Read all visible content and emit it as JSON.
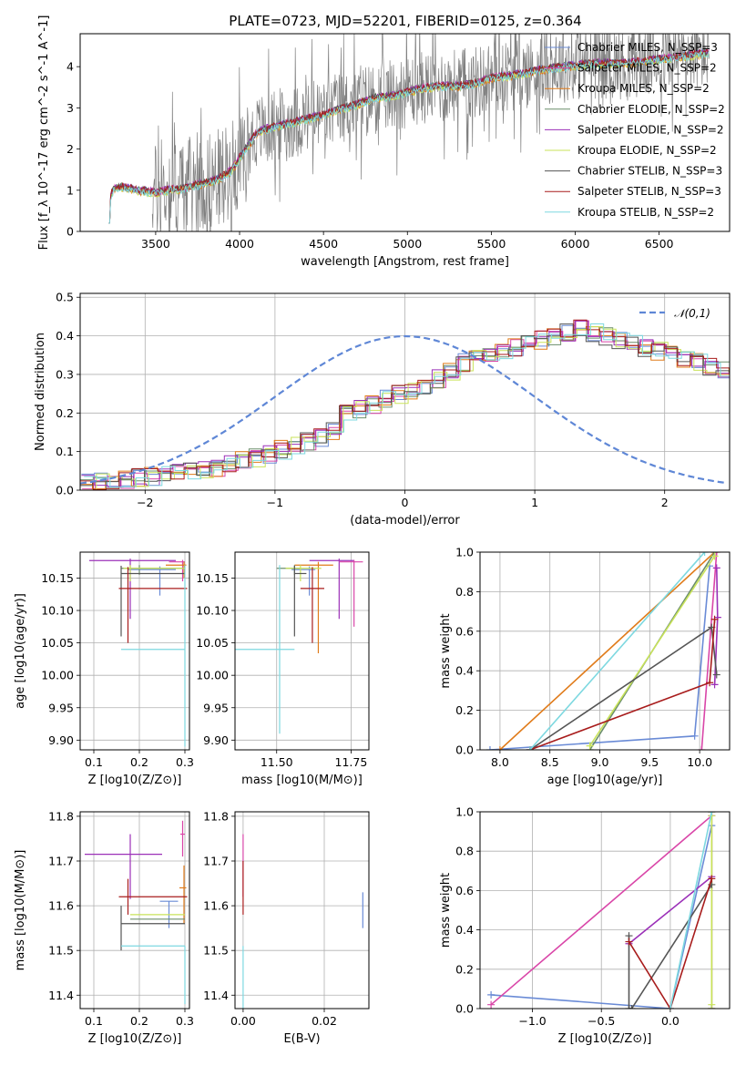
{
  "title": "PLATE=0723, MJD=52201, FIBERID=0125, z=0.364",
  "colors": {
    "Chabrier MILES": "#6a8bd6",
    "Salpeter MILES": "#d946a8",
    "Kroupa MILES": "#e07b1a",
    "Chabrier ELODIE": "#6b8e6b",
    "Salpeter ELODIE": "#9b30b8",
    "Kroupa ELODIE": "#c9e35a",
    "Chabrier STELIB": "#555555",
    "Salpeter STELIB": "#a81c1c",
    "Kroupa STELIB": "#7dd8e0",
    "data": "#808080",
    "normal": "#5f87d6"
  },
  "chart_data": [
    {
      "id": "spectrum",
      "type": "line",
      "xlabel": "wavelength [Angstrom, rest frame]",
      "ylabel": "Flux [f_λ 10^-17 erg cm^-2 s^-1 A^-1]",
      "xlim": [
        3050,
        6920
      ],
      "ylim": [
        0,
        4.8
      ],
      "xticks": [
        3500,
        4000,
        4500,
        5000,
        5500,
        6000,
        6500
      ],
      "yticks": [
        0,
        1,
        2,
        3,
        4
      ],
      "legend_position": "top-right",
      "legend": [
        "Chabrier MILES, N_SSP=3",
        "Salpeter MILES, N_SSP=2",
        "Kroupa MILES, N_SSP=2",
        "Chabrier ELODIE, N_SSP=2",
        "Salpeter ELODIE, N_SSP=2",
        "Kroupa ELODIE, N_SSP=2",
        "Chabrier STELIB, N_SSP=3",
        "Salpeter STELIB, N_SSP=3",
        "Kroupa STELIB, N_SSP=2"
      ],
      "model_continuum": {
        "x": [
          3220,
          3250,
          3300,
          3350,
          3400,
          3450,
          3500,
          3550,
          3600,
          3650,
          3700,
          3750,
          3800,
          3850,
          3900,
          3950,
          4000,
          4050,
          4100,
          4150,
          4200,
          4300,
          4400,
          4500,
          4600,
          4700,
          4800,
          4900,
          5000,
          5100,
          5200,
          5300,
          5400,
          5500,
          5600,
          5700,
          5800,
          5900,
          6000,
          6100,
          6200,
          6300,
          6400,
          6500,
          6600,
          6700,
          6800
        ],
        "y": [
          0.75,
          1.05,
          1.1,
          1.05,
          1.0,
          1.0,
          0.95,
          1.0,
          1.05,
          1.05,
          1.1,
          1.15,
          1.2,
          1.25,
          1.35,
          1.5,
          1.8,
          2.1,
          2.4,
          2.5,
          2.55,
          2.65,
          2.75,
          2.85,
          3.0,
          3.1,
          3.25,
          3.3,
          3.4,
          3.5,
          3.55,
          3.55,
          3.6,
          3.75,
          3.8,
          3.85,
          3.95,
          4.0,
          4.05,
          4.1,
          4.1,
          4.1,
          4.15,
          4.2,
          4.25,
          4.3,
          4.35
        ]
      },
      "data_range": [
        3480,
        6800
      ]
    },
    {
      "id": "residuals",
      "type": "step",
      "xlabel": "(data-model)/error",
      "ylabel": "Normed distribution",
      "xlim": [
        -2.5,
        2.5
      ],
      "ylim": [
        0,
        0.51
      ],
      "xticks": [
        -2,
        -1,
        0,
        1,
        2
      ],
      "yticks": [
        0.0,
        0.1,
        0.2,
        0.3,
        0.4,
        0.5
      ],
      "legend": "𝒩(0,1)",
      "legend_position": "top-right",
      "bin_width": 0.1,
      "base_histogram": [
        0.02,
        0.022,
        0.025,
        0.028,
        0.031,
        0.035,
        0.04,
        0.045,
        0.05,
        0.055,
        0.06,
        0.068,
        0.075,
        0.085,
        0.095,
        0.105,
        0.115,
        0.125,
        0.135,
        0.15,
        0.2,
        0.21,
        0.22,
        0.24,
        0.25,
        0.26,
        0.27,
        0.29,
        0.31,
        0.33,
        0.34,
        0.35,
        0.36,
        0.37,
        0.38,
        0.39,
        0.4,
        0.41,
        0.42,
        0.41,
        0.4,
        0.39,
        0.38,
        0.37,
        0.36,
        0.35,
        0.34,
        0.33,
        0.32,
        0.31,
        0.3,
        0.29,
        0.28,
        0.27,
        0.26,
        0.25,
        0.24,
        0.23,
        0.22,
        0.21,
        0.2,
        0.19,
        0.18,
        0.17,
        0.16,
        0.15,
        0.14,
        0.13,
        0.12,
        0.11,
        0.1,
        0.095,
        0.09,
        0.085,
        0.08,
        0.075,
        0.07,
        0.065,
        0.06,
        0.058,
        0.055,
        0.05,
        0.05,
        0.05,
        0.055,
        0.06,
        0.06,
        0.06,
        0.065,
        0.065,
        0.07,
        0.07,
        0.07,
        0.07,
        0.07,
        0.07,
        0.07,
        0.07,
        0.07,
        0.07
      ]
    },
    {
      "id": "age_vs_Z",
      "type": "errorbar",
      "xlabel": "Z [log10(Z/Z⊙)]",
      "ylabel": "age  [log10(age/yr)]",
      "xlim": [
        0.07,
        0.31
      ],
      "ylim": [
        9.885,
        10.19
      ],
      "xticks": [
        0.1,
        0.2,
        0.3
      ],
      "yticks": [
        9.9,
        9.95,
        10.0,
        10.05,
        10.1,
        10.15
      ],
      "points": [
        {
          "model": "Chabrier MILES",
          "x": 0.245,
          "y": 10.163,
          "xerr": [
            0.07,
            0.035
          ],
          "yerr": [
            0.04,
            0.005
          ]
        },
        {
          "model": "Salpeter MILES",
          "x": 0.295,
          "y": 10.175,
          "xerr": [
            0.03,
            0.005
          ],
          "yerr": [
            0.03,
            0.003
          ]
        },
        {
          "model": "Kroupa MILES",
          "x": 0.298,
          "y": 10.17,
          "xerr": [
            0.04,
            0.005
          ],
          "yerr": [
            0.02,
            0.005
          ]
        },
        {
          "model": "Chabrier ELODIE",
          "x": 0.2,
          "y": 10.165,
          "xerr": [
            0.04,
            0.1
          ],
          "yerr": [
            0.01,
            0.005
          ]
        },
        {
          "model": "Salpeter ELODIE",
          "x": 0.18,
          "y": 10.177,
          "xerr": [
            0.09,
            0.1
          ],
          "yerr": [
            0.09,
            0.003
          ]
        },
        {
          "model": "Kroupa ELODIE",
          "x": 0.18,
          "y": 10.165,
          "xerr": [
            0.015,
            0.12
          ],
          "yerr": [
            0.02,
            0.005
          ]
        },
        {
          "model": "Chabrier STELIB",
          "x": 0.16,
          "y": 10.157,
          "xerr": [
            0.0,
            0.14
          ],
          "yerr": [
            0.097,
            0.012
          ]
        },
        {
          "model": "Salpeter STELIB",
          "x": 0.175,
          "y": 10.134,
          "xerr": [
            0.02,
            0.13
          ],
          "yerr": [
            0.084,
            0.033
          ]
        },
        {
          "model": "Kroupa STELIB",
          "x": 0.3,
          "y": 10.04,
          "xerr": [
            0.14,
            0.0
          ],
          "yerr": [
            0.15,
            0.13
          ]
        }
      ]
    },
    {
      "id": "age_vs_mass",
      "type": "errorbar",
      "xlabel": "mass [log10(M/M⊙)]",
      "ylabel": "",
      "xlim": [
        11.36,
        11.81
      ],
      "ylim": [
        9.885,
        10.19
      ],
      "xticks": [
        11.5,
        11.75
      ],
      "yticks": [
        9.9,
        9.95,
        10.0,
        10.05,
        10.1,
        10.15
      ],
      "points": [
        {
          "model": "Salpeter ELODIE",
          "x": 11.71,
          "y": 10.177,
          "xerr": [
            0.1,
            0.05
          ],
          "yerr": [
            0.09,
            0.003
          ]
        },
        {
          "model": "Salpeter MILES",
          "x": 11.76,
          "y": 10.175,
          "xerr": [
            0.05,
            0.03
          ],
          "yerr": [
            0.1,
            0.003
          ]
        },
        {
          "model": "Kroupa MILES",
          "x": 11.64,
          "y": 10.17,
          "xerr": [
            0.08,
            0.05
          ],
          "yerr": [
            0.136,
            0.005
          ]
        },
        {
          "model": "Chabrier MILES",
          "x": 11.61,
          "y": 10.163,
          "xerr": [
            0.06,
            0.02
          ],
          "yerr": [
            0.04,
            0.005
          ]
        },
        {
          "model": "Chabrier ELODIE",
          "x": 11.56,
          "y": 10.165,
          "xerr": [
            0.06,
            0.02
          ],
          "yerr": [
            0.01,
            0.005
          ]
        },
        {
          "model": "Kroupa ELODIE",
          "x": 11.58,
          "y": 10.165,
          "xerr": [
            0.05,
            0.07
          ],
          "yerr": [
            0.02,
            0.005
          ]
        },
        {
          "model": "Chabrier STELIB",
          "x": 11.56,
          "y": 10.157,
          "xerr": [
            0.0,
            0.04
          ],
          "yerr": [
            0.097,
            0.012
          ]
        },
        {
          "model": "Salpeter STELIB",
          "x": 11.62,
          "y": 10.134,
          "xerr": [
            0.04,
            0.04
          ],
          "yerr": [
            0.084,
            0.033
          ]
        },
        {
          "model": "Kroupa STELIB",
          "x": 11.51,
          "y": 10.04,
          "xerr": [
            0.15,
            0.05
          ],
          "yerr": [
            0.13,
            0.13
          ]
        }
      ]
    },
    {
      "id": "mass_weight_vs_age",
      "type": "line",
      "xlabel": "age  [log10(age/yr)]",
      "ylabel": "mass weight",
      "xlim": [
        7.8,
        10.3
      ],
      "ylim": [
        0,
        1.0
      ],
      "xticks": [
        8.0,
        8.5,
        9.0,
        9.5,
        10.0
      ],
      "yticks": [
        0.0,
        0.2,
        0.4,
        0.6,
        0.8,
        1.0
      ],
      "series": [
        {
          "model": "Chabrier MILES",
          "x": [
            7.9,
            9.95,
            10.1
          ],
          "y": [
            0.0,
            0.07,
            0.93
          ]
        },
        {
          "model": "Salpeter MILES",
          "x": [
            10.02,
            10.17
          ],
          "y": [
            0.0,
            1.0
          ]
        },
        {
          "model": "Kroupa MILES",
          "x": [
            8.0,
            10.15
          ],
          "y": [
            0.0,
            1.0
          ]
        },
        {
          "model": "Chabrier ELODIE",
          "x": [
            8.9,
            10.15
          ],
          "y": [
            0.0,
            1.0
          ]
        },
        {
          "model": "Salpeter ELODIE",
          "x": [
            10.15,
            10.18,
            10.17
          ],
          "y": [
            0.33,
            0.67,
            0.92
          ]
        },
        {
          "model": "Kroupa ELODIE",
          "x": [
            8.9,
            10.15
          ],
          "y": [
            0.02,
            0.98
          ]
        },
        {
          "model": "Chabrier STELIB",
          "x": [
            8.3,
            10.12,
            10.17
          ],
          "y": [
            0.0,
            0.62,
            0.38
          ]
        },
        {
          "model": "Salpeter STELIB",
          "x": [
            8.3,
            10.1,
            10.15
          ],
          "y": [
            0.0,
            0.34,
            0.66
          ]
        },
        {
          "model": "Kroupa STELIB",
          "x": [
            8.3,
            10.05
          ],
          "y": [
            0.0,
            1.0
          ]
        }
      ]
    },
    {
      "id": "mass_vs_Z",
      "type": "errorbar",
      "xlabel": "Z [log10(Z/Z⊙)]",
      "ylabel": "mass [log10(M/M⊙)]",
      "xlim": [
        0.07,
        0.31
      ],
      "ylim": [
        11.37,
        11.81
      ],
      "xticks": [
        0.1,
        0.2,
        0.3
      ],
      "yticks": [
        11.4,
        11.5,
        11.6,
        11.7,
        11.8
      ],
      "points": [
        {
          "model": "Salpeter ELODIE",
          "x": 0.18,
          "y": 11.715,
          "xerr": [
            0.1,
            0.07
          ],
          "yerr": [
            0.1,
            0.045
          ]
        },
        {
          "model": "Salpeter MILES",
          "x": 0.295,
          "y": 11.76,
          "xerr": [
            0.005,
            0.005
          ],
          "yerr": [
            0.05,
            0.03
          ]
        },
        {
          "model": "Kroupa MILES",
          "x": 0.298,
          "y": 11.64,
          "xerr": [
            0.01,
            0.005
          ],
          "yerr": [
            0.08,
            0.05
          ]
        },
        {
          "model": "Salpeter STELIB",
          "x": 0.175,
          "y": 11.62,
          "xerr": [
            0.02,
            0.13
          ],
          "yerr": [
            0.04,
            0.04
          ]
        },
        {
          "model": "Chabrier MILES",
          "x": 0.265,
          "y": 11.61,
          "xerr": [
            0.02,
            0.02
          ],
          "yerr": [
            0.06,
            0.0
          ]
        },
        {
          "model": "Kroupa ELODIE",
          "x": 0.18,
          "y": 11.58,
          "xerr": [
            0.0,
            0.12
          ],
          "yerr": [
            0.0,
            0.0
          ]
        },
        {
          "model": "Chabrier ELODIE",
          "x": 0.2,
          "y": 11.57,
          "xerr": [
            0.02,
            0.1
          ],
          "yerr": [
            0.0,
            0.0
          ]
        },
        {
          "model": "Chabrier STELIB",
          "x": 0.16,
          "y": 11.56,
          "xerr": [
            0.0,
            0.14
          ],
          "yerr": [
            0.06,
            0.04
          ]
        },
        {
          "model": "Kroupa STELIB",
          "x": 0.3,
          "y": 11.51,
          "xerr": [
            0.14,
            0.0
          ],
          "yerr": [
            0.13,
            0.0
          ]
        }
      ]
    },
    {
      "id": "mass_vs_ebv",
      "type": "errorbar",
      "xlabel": "E(B-V)",
      "ylabel": "",
      "xlim": [
        -0.002,
        0.031
      ],
      "ylim": [
        11.37,
        11.81
      ],
      "xticks": [
        0.0,
        0.02
      ],
      "yticks": [
        11.4,
        11.5,
        11.6,
        11.7,
        11.8
      ],
      "points": [
        {
          "model": "Salpeter MILES",
          "x": 0.0,
          "y": 11.72,
          "xerr": [
            0,
            0
          ],
          "yerr": [
            0.1,
            0.04
          ]
        },
        {
          "model": "Salpeter STELIB",
          "x": 0.0,
          "y": 11.62,
          "xerr": [
            0,
            0
          ],
          "yerr": [
            0.04,
            0.08
          ]
        },
        {
          "model": "Kroupa STELIB",
          "x": 0.0,
          "y": 11.51,
          "xerr": [
            0,
            0
          ],
          "yerr": [
            0.14,
            0.0
          ]
        },
        {
          "model": "Chabrier MILES",
          "x": 0.0295,
          "y": 11.59,
          "xerr": [
            0,
            0
          ],
          "yerr": [
            0.04,
            0.04
          ]
        }
      ]
    },
    {
      "id": "mass_weight_vs_Z",
      "type": "line",
      "xlabel": "Z [log10(Z/Z⊙)]",
      "ylabel": "mass weight",
      "xlim": [
        -1.38,
        0.43
      ],
      "ylim": [
        0,
        1.0
      ],
      "xticks": [
        -1.0,
        -0.5,
        0.0
      ],
      "yticks": [
        0.0,
        0.2,
        0.4,
        0.6,
        0.8,
        1.0
      ],
      "series": [
        {
          "model": "Chabrier MILES",
          "x": [
            -1.3,
            0.0,
            0.3
          ],
          "y": [
            0.07,
            0.0,
            0.93
          ]
        },
        {
          "model": "Salpeter MILES",
          "x": [
            -1.3,
            0.3
          ],
          "y": [
            0.02,
            0.98
          ]
        },
        {
          "model": "Kroupa MILES",
          "x": [
            0.3,
            0.3
          ],
          "y": [
            0.0,
            1.0
          ]
        },
        {
          "model": "Chabrier ELODIE",
          "x": [
            0.3,
            0.3
          ],
          "y": [
            0.0,
            1.0
          ]
        },
        {
          "model": "Salpeter ELODIE",
          "x": [
            -0.3,
            0.3
          ],
          "y": [
            0.33,
            0.67
          ]
        },
        {
          "model": "Kroupa ELODIE",
          "x": [
            0.3,
            0.3
          ],
          "y": [
            0.02,
            0.98
          ]
        },
        {
          "model": "Chabrier STELIB",
          "x": [
            -0.3,
            -0.3,
            -0.28,
            0.3
          ],
          "y": [
            0.37,
            0.0,
            0.0,
            0.63
          ]
        },
        {
          "model": "Salpeter STELIB",
          "x": [
            -0.3,
            0.0,
            0.3
          ],
          "y": [
            0.34,
            0.0,
            0.66
          ]
        },
        {
          "model": "Kroupa STELIB",
          "x": [
            0.0,
            0.3
          ],
          "y": [
            0.0,
            1.0
          ]
        }
      ]
    }
  ]
}
